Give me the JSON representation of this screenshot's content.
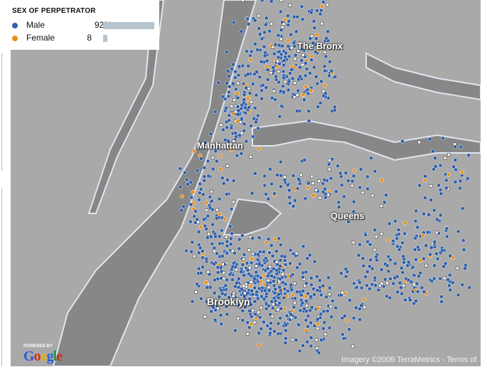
{
  "legend": {
    "title": "SEX OF PERPETRATOR",
    "items": [
      {
        "label": "Male",
        "value": "92%",
        "percent": 92,
        "color": "#2f5fa8"
      },
      {
        "label": "Female",
        "value": "8",
        "percent": 8,
        "color": "#e8901a"
      }
    ]
  },
  "map": {
    "labels": {
      "bronx": "The Bronx",
      "manhattan": "Manhattan",
      "queens": "Queens",
      "brooklyn": "Brooklyn"
    },
    "attribution": "Imagery ©2009 TerraMetrics - Terms of",
    "powered_by": "POWERED BY",
    "logo": "Google",
    "colors": {
      "land": "#a9a9a9",
      "water": "#878787",
      "shore": "#dfe6f0",
      "open_point": "#ffffff"
    }
  }
}
